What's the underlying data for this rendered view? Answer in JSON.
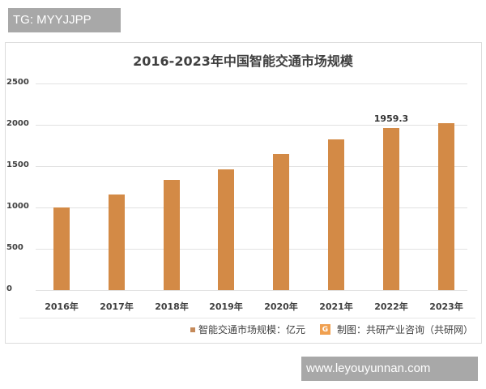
{
  "overlay": {
    "top_badge": "TG: MYYJJPP",
    "bottom_badge": "www.leyouyunnan.com"
  },
  "chart": {
    "title": "2016-2023年中国智能交通市场规模",
    "legend_label": "智能交通市场规模：亿元",
    "credit": "制图：共研产业咨询（共研网）",
    "credit_logo": "G",
    "bar_color": "#d38a46"
  },
  "y_ticks": [
    "2500",
    "2000",
    "1500",
    "1000",
    "500",
    "0"
  ],
  "x_labels": [
    "2016年",
    "2017年",
    "2018年",
    "2019年",
    "2020年",
    "2021年",
    "2022年",
    "2023年"
  ],
  "data_labels": {
    "2022": "1959.3"
  },
  "chart_data": {
    "type": "bar",
    "title": "2016-2023年中国智能交通市场规模",
    "categories": [
      "2016年",
      "2017年",
      "2018年",
      "2019年",
      "2020年",
      "2021年",
      "2022年",
      "2023年"
    ],
    "series": [
      {
        "name": "智能交通市场规模：亿元",
        "values": [
          1000,
          1160,
          1330,
          1460,
          1650,
          1820,
          1959.3,
          2020
        ]
      }
    ],
    "annotations": [
      {
        "category": "2022年",
        "label": "1959.3"
      }
    ],
    "xlabel": "",
    "ylabel": "",
    "ylim": [
      0,
      2500
    ],
    "yticks": [
      0,
      500,
      1000,
      1500,
      2000,
      2500
    ],
    "grid": true,
    "legend_position": "bottom"
  }
}
